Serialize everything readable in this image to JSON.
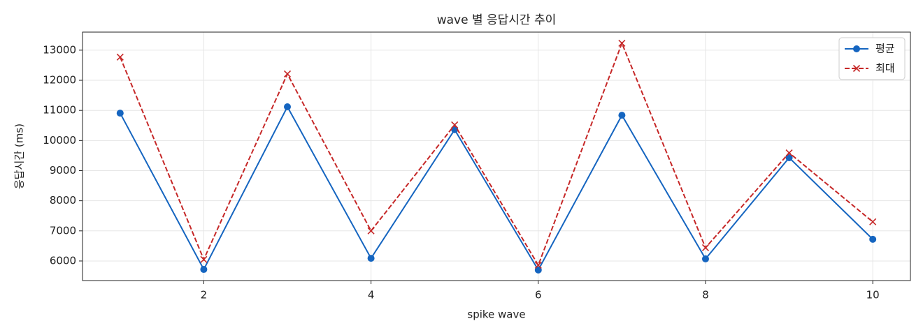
{
  "chart_data": {
    "type": "line",
    "title": "wave 별 응답시간 추이",
    "x_label": "spike wave",
    "y_label": "응답시간 (ms)",
    "x": [
      1,
      2,
      3,
      4,
      5,
      6,
      7,
      8,
      9,
      10
    ],
    "series": [
      {
        "name": "평균",
        "color": "#1565c0",
        "marker": "circle",
        "dash": "solid",
        "values": [
          10910,
          5720,
          11120,
          6090,
          10360,
          5700,
          10840,
          6070,
          9430,
          6720
        ]
      },
      {
        "name": "최대",
        "color": "#c62828",
        "marker": "x",
        "dash": "dashed",
        "values": [
          12770,
          6050,
          12210,
          7000,
          10520,
          5860,
          13230,
          6440,
          9590,
          7300
        ]
      }
    ],
    "xlim": [
      0.55,
      10.45
    ],
    "xticks": [
      2,
      4,
      6,
      8,
      10
    ],
    "ylim": [
      5350,
      13600
    ],
    "yticks": [
      6000,
      7000,
      8000,
      9000,
      10000,
      11000,
      12000,
      13000
    ],
    "grid": true,
    "legend": "upper right"
  }
}
